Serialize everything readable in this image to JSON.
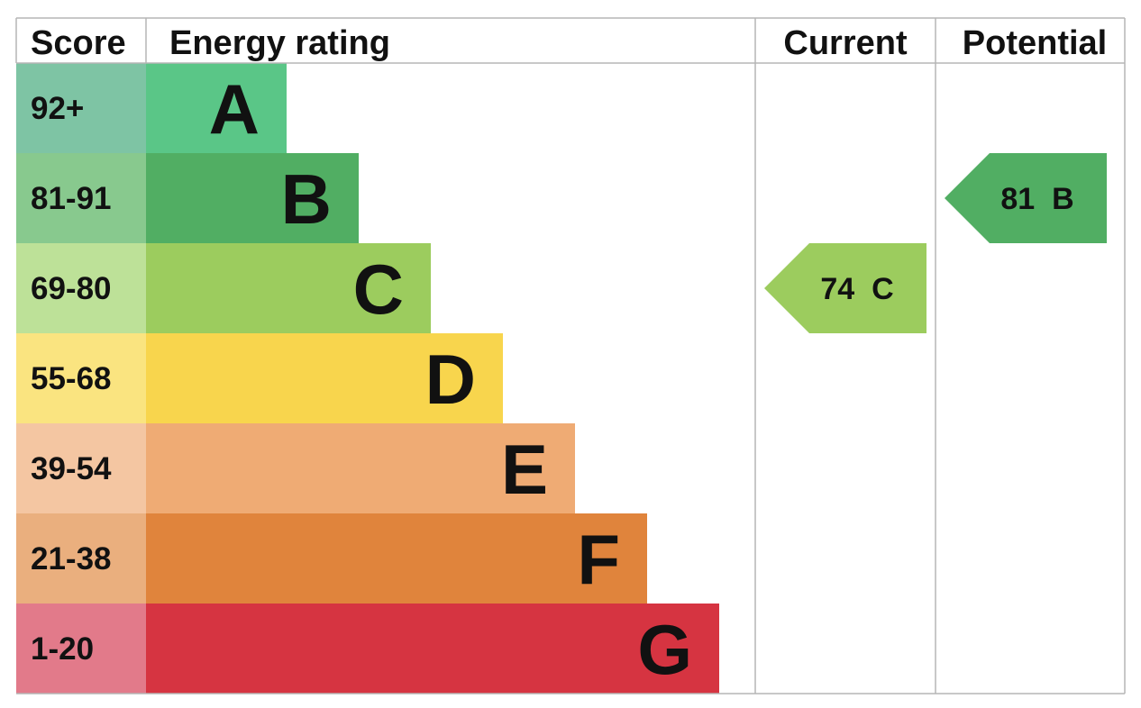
{
  "header": {
    "score": "Score",
    "energy_rating": "Energy rating",
    "current": "Current",
    "potential": "Potential"
  },
  "chart_data": {
    "type": "bar",
    "bands": [
      {
        "score": "92+",
        "letter": "A",
        "color": "#5ac687",
        "score_color": "#7ec4a4"
      },
      {
        "score": "81-91",
        "letter": "B",
        "color": "#51ae63",
        "score_color": "#88c98e"
      },
      {
        "score": "69-80",
        "letter": "C",
        "color": "#9ccc5e",
        "score_color": "#bde198"
      },
      {
        "score": "55-68",
        "letter": "D",
        "color": "#f8d54d",
        "score_color": "#fae480"
      },
      {
        "score": "39-54",
        "letter": "E",
        "color": "#efab74",
        "score_color": "#f4c6a2"
      },
      {
        "score": "21-38",
        "letter": "F",
        "color": "#e0843c",
        "score_color": "#eaaf7e"
      },
      {
        "score": "1-20",
        "letter": "G",
        "color": "#d63441",
        "score_color": "#e27a8a"
      }
    ],
    "current": {
      "value": "74",
      "letter": "C",
      "color": "#9ccc5e"
    },
    "potential": {
      "value": "81",
      "letter": "B",
      "color": "#51ae63"
    }
  }
}
